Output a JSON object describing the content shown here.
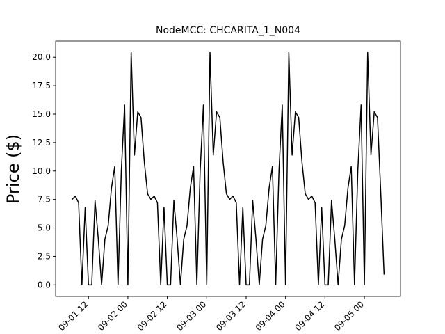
{
  "chart_data": {
    "type": "line",
    "title": "NodeMCC: CHCARITA_1_N004",
    "ylabel": "Price ($)",
    "x": [
      "09-01 07",
      "09-01 08",
      "09-01 09",
      "09-01 10",
      "09-01 11",
      "09-01 12",
      "09-01 13",
      "09-01 14",
      "09-01 15",
      "09-01 16",
      "09-01 17",
      "09-01 18",
      "09-01 19",
      "09-01 20",
      "09-01 21",
      "09-01 22",
      "09-01 23",
      "09-02 00",
      "09-02 01",
      "09-02 02",
      "09-02 03",
      "09-02 04",
      "09-02 05",
      "09-02 06",
      "09-02 07",
      "09-02 08",
      "09-02 09",
      "09-02 10",
      "09-02 11",
      "09-02 12",
      "09-02 13",
      "09-02 14",
      "09-02 15",
      "09-02 16",
      "09-02 17",
      "09-02 18",
      "09-02 19",
      "09-02 20",
      "09-02 21",
      "09-02 22",
      "09-02 23",
      "09-03 00",
      "09-03 01",
      "09-03 02",
      "09-03 03",
      "09-03 04",
      "09-03 05",
      "09-03 06",
      "09-03 07",
      "09-03 08",
      "09-03 09",
      "09-03 10",
      "09-03 11",
      "09-03 12",
      "09-03 13",
      "09-03 14",
      "09-03 15",
      "09-03 16",
      "09-03 17",
      "09-03 18",
      "09-03 19",
      "09-03 20",
      "09-03 21",
      "09-03 22",
      "09-03 23",
      "09-04 00",
      "09-04 01",
      "09-04 02",
      "09-04 03",
      "09-04 04",
      "09-04 05",
      "09-04 06",
      "09-04 07",
      "09-04 08",
      "09-04 09",
      "09-04 10",
      "09-04 11",
      "09-04 12",
      "09-04 13",
      "09-04 14",
      "09-04 15",
      "09-04 16",
      "09-04 17",
      "09-04 18",
      "09-04 19",
      "09-04 20",
      "09-04 21",
      "09-04 22",
      "09-04 23",
      "09-05 00",
      "09-05 01",
      "09-05 02",
      "09-05 03",
      "09-05 04",
      "09-05 05",
      "09-05 06"
    ],
    "series": [
      {
        "color": "#000000",
        "values": [
          7.5,
          7.8,
          7.2,
          0,
          6.8,
          0,
          0,
          7.4,
          4.0,
          0,
          4.0,
          5.2,
          8.5,
          10.4,
          0,
          10.0,
          15.8,
          0,
          20.4,
          11.4,
          15.2,
          14.7,
          10.8,
          8.0,
          7.5,
          7.8,
          7.2,
          0,
          6.8,
          0,
          0,
          7.4,
          4.0,
          0,
          4.0,
          5.2,
          8.5,
          10.4,
          0,
          10.0,
          15.8,
          0,
          20.4,
          11.4,
          15.2,
          14.7,
          10.8,
          8.0,
          7.5,
          7.8,
          7.2,
          0,
          6.8,
          0,
          0,
          7.4,
          4.0,
          0,
          4.0,
          5.2,
          8.5,
          10.4,
          0,
          10.0,
          15.8,
          0,
          20.4,
          11.4,
          15.2,
          14.7,
          10.8,
          8.0,
          7.5,
          7.8,
          7.2,
          0,
          6.8,
          0,
          0,
          7.4,
          4.0,
          0,
          4.0,
          5.2,
          8.5,
          10.4,
          0,
          10.0,
          15.8,
          0,
          20.4,
          11.4,
          15.2,
          14.7,
          8.0,
          0.9
        ]
      }
    ],
    "xlim": [
      "09-01 02",
      "09-05 11"
    ],
    "xticks": [
      "09-01 12",
      "09-02 00",
      "09-02 12",
      "09-03 00",
      "09-03 12",
      "09-04 00",
      "09-04 12",
      "09-05 00"
    ],
    "ylim": [
      -1.02,
      21.42
    ],
    "yticks": [
      {
        "value": 0,
        "label": "0.0"
      },
      {
        "value": 2.5,
        "label": "2.5"
      },
      {
        "value": 5,
        "label": "5.0"
      },
      {
        "value": 7.5,
        "label": "7.5"
      },
      {
        "value": 10,
        "label": "10.0"
      },
      {
        "value": 12.5,
        "label": "12.5"
      },
      {
        "value": 15,
        "label": "15.0"
      },
      {
        "value": 17.5,
        "label": "17.5"
      },
      {
        "value": 20,
        "label": "20.0"
      }
    ]
  }
}
